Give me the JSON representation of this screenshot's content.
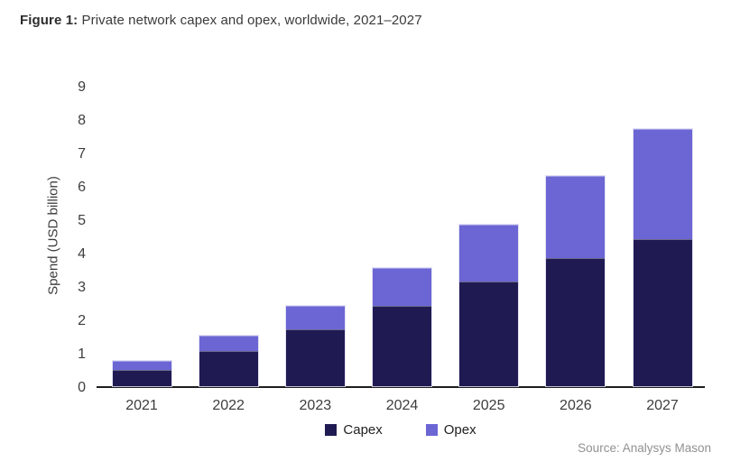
{
  "title": {
    "prefix": "Figure 1:",
    "text": "Private network capex and opex, worldwide, 2021–2027"
  },
  "source": "Source: Analysys Mason",
  "colors": {
    "capex": "#1f1b52",
    "opex": "#6b66d4",
    "axis_line": "#1e1e1e",
    "tick_text": "#3d3d3d",
    "source_text": "#919191"
  },
  "chart_data": {
    "type": "bar",
    "stacked": true,
    "title": "Private network capex and opex, worldwide, 2021–2027",
    "categories": [
      "2021",
      "2022",
      "2023",
      "2024",
      "2025",
      "2026",
      "2027"
    ],
    "series": [
      {
        "name": "Capex",
        "color": "#1f1b52",
        "values": [
          0.5,
          1.05,
          1.7,
          2.4,
          3.15,
          3.85,
          4.4
        ]
      },
      {
        "name": "Opex",
        "color": "#6b66d4",
        "values": [
          0.25,
          0.45,
          0.7,
          1.15,
          1.7,
          2.45,
          3.3
        ]
      }
    ],
    "totals": [
      0.75,
      1.5,
      2.4,
      3.55,
      4.85,
      6.3,
      7.7
    ],
    "xlabel": "",
    "ylabel": "Spend (USD billion)",
    "ylim": [
      0,
      9
    ],
    "yticks": [
      0,
      1,
      2,
      3,
      4,
      5,
      6,
      7,
      8,
      9
    ],
    "grid": false,
    "legend_position": "bottom-center"
  }
}
